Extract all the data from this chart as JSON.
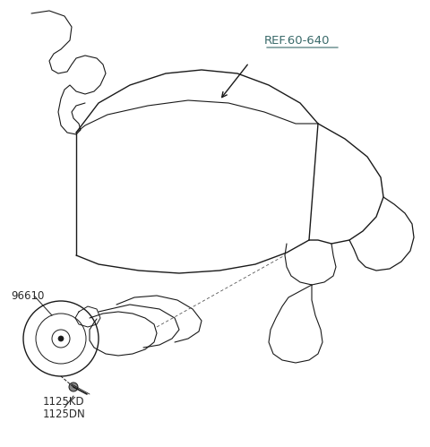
{
  "background_color": "#ffffff",
  "line_color": "#1a1a1a",
  "label_color": "#2a2a2a",
  "ref_label": "REF.60-640",
  "ref_label_color": "#3a6a6a",
  "part_96610": "96610",
  "part_1125KD": "1125KD",
  "part_1125DN": "1125DN",
  "figsize": [
    4.8,
    4.99
  ],
  "dpi": 100
}
